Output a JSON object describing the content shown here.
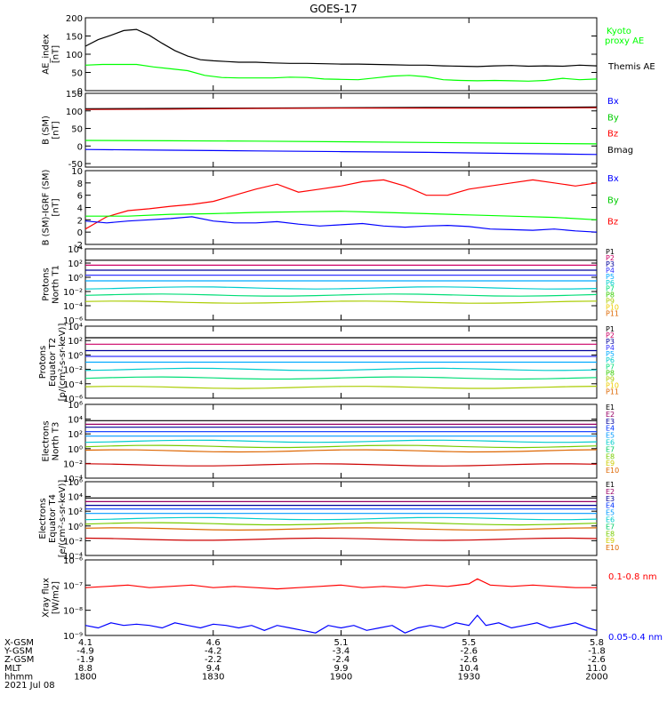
{
  "title": "GOES-17",
  "colors": {
    "black": "#000000",
    "blue": "#0000ff",
    "green": "#00ff00",
    "red": "#ff0000",
    "darkred": "#990000",
    "p_list": [
      "#000000",
      "#cc0066",
      "#000099",
      "#3333ff",
      "#00aaff",
      "#00cccc",
      "#00dd77",
      "#33cc00",
      "#aacc00",
      "#eecc00",
      "#dd6600",
      "#cc0000",
      "#990000"
    ],
    "e_list": [
      "#000000",
      "#990066",
      "#000099",
      "#0033ff",
      "#0099ff",
      "#00cccc",
      "#00cc66",
      "#77cc00",
      "#cccc00",
      "#dd6600",
      "#cc0000",
      "#880000"
    ]
  },
  "time_axis": {
    "start": 1800,
    "end": 2000,
    "ticks": [
      "1800",
      "1830",
      "1900",
      "1930",
      "2000"
    ],
    "tick_minutes": [
      0,
      30,
      60,
      90,
      120
    ]
  },
  "footer": {
    "row_labels": [
      "X-GSM",
      "Y-GSM",
      "Z-GSM",
      "MLT",
      "hhmm"
    ],
    "date": "2021 Jul 08",
    "columns": [
      [
        "4.1",
        "-4.9",
        "-1.9",
        "8.8",
        "1800"
      ],
      [
        "4.6",
        "-4.2",
        "-2.2",
        "9.4",
        "1830"
      ],
      [
        "5.1",
        "-3.4",
        "-2.4",
        "9.9",
        "1900"
      ],
      [
        "5.5",
        "-2.6",
        "-2.6",
        "10.4",
        "1930"
      ],
      [
        "5.8",
        "-1.8",
        "-2.6",
        "11.0",
        "2000"
      ]
    ]
  },
  "chart_data": [
    {
      "type": "line",
      "panel": "ae",
      "ylabel": [
        "AE_index",
        "[nT]"
      ],
      "ylim": [
        0,
        200
      ],
      "yticks": [
        "200",
        "150",
        "100",
        "50",
        "0"
      ],
      "legend": [
        {
          "label": "Kyoto",
          "color": "#00ff00"
        },
        {
          "label": "proxy AE",
          "color": "#00ff00"
        },
        {
          "label": "Themis AE",
          "color": "#000000"
        }
      ],
      "series": [
        {
          "name": "Themis AE",
          "color": "#000000",
          "t": [
            0,
            3,
            6,
            9,
            12,
            15,
            18,
            21,
            24,
            27,
            30,
            33,
            36,
            40,
            44,
            48,
            52,
            56,
            60,
            64,
            68,
            72,
            76,
            80,
            84,
            88,
            92,
            96,
            100,
            104,
            108,
            112,
            116,
            120
          ],
          "v": [
            122,
            140,
            152,
            165,
            168,
            152,
            130,
            110,
            95,
            85,
            82,
            80,
            78,
            78,
            76,
            75,
            75,
            74,
            73,
            73,
            72,
            71,
            70,
            70,
            68,
            67,
            66,
            68,
            69,
            67,
            68,
            67,
            70,
            68
          ]
        },
        {
          "name": "Kyoto proxy AE",
          "color": "#00ff00",
          "t": [
            0,
            4,
            8,
            12,
            16,
            20,
            24,
            28,
            32,
            36,
            40,
            44,
            48,
            52,
            56,
            60,
            64,
            68,
            72,
            76,
            80,
            84,
            88,
            92,
            96,
            100,
            104,
            108,
            112,
            116,
            120
          ],
          "v": [
            70,
            72,
            72,
            72,
            65,
            60,
            55,
            42,
            36,
            35,
            35,
            35,
            37,
            36,
            32,
            31,
            30,
            35,
            40,
            42,
            38,
            30,
            28,
            27,
            28,
            27,
            26,
            28,
            34,
            30,
            32
          ]
        }
      ]
    },
    {
      "type": "line",
      "panel": "bsm",
      "ylabel": [
        "B (SM)",
        "[nT]"
      ],
      "ylim": [
        -60,
        150
      ],
      "yticks": [
        "150",
        "100",
        "50",
        "0",
        "-50"
      ],
      "legend": [
        {
          "label": "Bx",
          "color": "#0000ff"
        },
        {
          "label": "By",
          "color": "#00cc00"
        },
        {
          "label": "Bz",
          "color": "#ff0000"
        },
        {
          "label": "Bmag",
          "color": "#000000"
        }
      ],
      "series": [
        {
          "name": "Bmag",
          "color": "#000000",
          "t": [
            0,
            20,
            40,
            60,
            80,
            100,
            120
          ],
          "v": [
            106,
            107,
            108,
            109,
            110,
            110,
            111
          ]
        },
        {
          "name": "Bz",
          "color": "#cc0000",
          "t": [
            0,
            20,
            40,
            60,
            80,
            100,
            120
          ],
          "v": [
            104,
            105,
            107,
            108,
            108,
            108,
            109
          ]
        },
        {
          "name": "By",
          "color": "#00ff00",
          "t": [
            0,
            20,
            40,
            60,
            80,
            100,
            120
          ],
          "v": [
            16,
            15,
            14,
            12,
            10,
            8,
            6
          ]
        },
        {
          "name": "Bx",
          "color": "#0000ff",
          "t": [
            0,
            20,
            40,
            60,
            80,
            100,
            120
          ],
          "v": [
            -10,
            -12,
            -14,
            -16,
            -18,
            -21,
            -24
          ]
        }
      ]
    },
    {
      "type": "line",
      "panel": "bigrf",
      "ylabel": [
        "B (SM)-IGRF (SM)",
        "[nT]"
      ],
      "ylim": [
        -2,
        10
      ],
      "yticks": [
        "10",
        "8",
        "6",
        "4",
        "2",
        "0",
        "-2"
      ],
      "legend": [
        {
          "label": "Bx",
          "color": "#0000ff"
        },
        {
          "label": "By",
          "color": "#00cc00"
        },
        {
          "label": "Bz",
          "color": "#ff0000"
        }
      ],
      "series": [
        {
          "name": "Bz",
          "color": "#ff0000",
          "t": [
            0,
            5,
            10,
            15,
            20,
            25,
            30,
            35,
            40,
            45,
            50,
            55,
            60,
            65,
            70,
            75,
            80,
            85,
            90,
            95,
            100,
            105,
            110,
            115,
            120
          ],
          "v": [
            0.5,
            2.5,
            3.5,
            3.8,
            4.2,
            4.5,
            5,
            6,
            7,
            7.8,
            6.5,
            7,
            7.5,
            8.2,
            8.5,
            7.5,
            6,
            6,
            7,
            7.5,
            8,
            8.5,
            8,
            7.5,
            8
          ]
        },
        {
          "name": "By",
          "color": "#00ff00",
          "t": [
            0,
            10,
            20,
            30,
            40,
            50,
            60,
            70,
            80,
            90,
            100,
            110,
            120
          ],
          "v": [
            2.6,
            2.6,
            2.9,
            3,
            3.2,
            3.3,
            3.4,
            3.2,
            3,
            2.8,
            2.6,
            2.4,
            2
          ]
        },
        {
          "name": "Bx",
          "color": "#0000ff",
          "t": [
            0,
            5,
            10,
            15,
            20,
            25,
            30,
            35,
            40,
            45,
            50,
            55,
            60,
            65,
            70,
            75,
            80,
            85,
            90,
            95,
            100,
            105,
            110,
            115,
            120
          ],
          "v": [
            1.8,
            1.5,
            1.8,
            2,
            2.2,
            2.5,
            1.8,
            1.5,
            1.5,
            1.7,
            1.3,
            1,
            1.2,
            1.4,
            1,
            0.8,
            1,
            1.1,
            0.9,
            0.5,
            0.4,
            0.3,
            0.5,
            0.2,
            0
          ]
        }
      ]
    },
    {
      "type": "line",
      "panel": "p_north",
      "ylabel": [
        "Protons",
        "North T1"
      ],
      "log": true,
      "ylim_exp": [
        -6,
        4
      ],
      "ytick_exps": [
        4,
        2,
        0,
        -2,
        -4,
        -6
      ],
      "legend": [
        "P1",
        "P2",
        "P3",
        "P4",
        "P5",
        "P6",
        "P7",
        "P8",
        "P9",
        "P10",
        "P11"
      ],
      "levels_exp": [
        2.4,
        1.7,
        1.0,
        0.3,
        -0.5,
        -1.5,
        -2.5,
        -3.5
      ],
      "level_colors": [
        "#000000",
        "#cc0066",
        "#000099",
        "#3333ff",
        "#00aaff",
        "#00cccc",
        "#00dd77",
        "#aacc00"
      ]
    },
    {
      "type": "line",
      "panel": "p_equator",
      "ylabel": [
        "Protons",
        "Equator T2",
        "[p/(cm²-s-sr-keV)]"
      ],
      "log": true,
      "ylim_exp": [
        -6,
        4
      ],
      "ytick_exps": [
        4,
        2,
        0,
        -2,
        -4,
        -6
      ],
      "legend": [
        "P1",
        "P2",
        "P3",
        "P4",
        "P5",
        "P6",
        "P7",
        "P8",
        "P9",
        "P10",
        "P11"
      ],
      "levels_exp": [
        2.4,
        1.5,
        0.6,
        -0.2,
        -1.0,
        -2.0,
        -3.2,
        -4.5
      ],
      "level_colors": [
        "#000000",
        "#cc0066",
        "#000099",
        "#3333ff",
        "#00aaff",
        "#00cccc",
        "#00dd77",
        "#aacc00"
      ]
    },
    {
      "type": "line",
      "panel": "e_north",
      "ylabel": [
        "Electrons",
        "North T3"
      ],
      "log": true,
      "ylim_exp": [
        -4,
        6
      ],
      "ytick_exps": [
        6,
        4,
        2,
        0,
        -2,
        -4
      ],
      "legend": [
        "E1",
        "E2",
        "E3",
        "E4",
        "E5",
        "E6",
        "E7",
        "E8",
        "E9",
        "E10"
      ],
      "levels_exp": [
        3.8,
        3.3,
        2.9,
        2.3,
        1.7,
        1.0,
        0.3,
        -0.3,
        -2.2
      ],
      "level_colors": [
        "#000000",
        "#990066",
        "#000099",
        "#0033ff",
        "#0099ff",
        "#00cccc",
        "#77cc00",
        "#dd6600",
        "#cc0000"
      ]
    },
    {
      "type": "line",
      "panel": "e_equator",
      "ylabel": [
        "Electrons",
        "Equator T4",
        "[e/(cm²-s-sr-keV)]"
      ],
      "log": true,
      "ylim_exp": [
        -4,
        6
      ],
      "ytick_exps": [
        6,
        4,
        2,
        0,
        -2,
        -4
      ],
      "legend": [
        "E1",
        "E2",
        "E3",
        "E4",
        "E5",
        "E6",
        "E7",
        "E8",
        "E9",
        "E10"
      ],
      "levels_exp": [
        3.8,
        3.3,
        2.8,
        2.3,
        1.7,
        1.0,
        0.3,
        -0.4,
        -1.8
      ],
      "level_colors": [
        "#000000",
        "#990066",
        "#000099",
        "#0033ff",
        "#0099ff",
        "#00cccc",
        "#77cc00",
        "#dd6600",
        "#cc0000"
      ]
    },
    {
      "type": "line",
      "panel": "xray",
      "ylabel": [
        "Xray flux",
        "[W/m2]"
      ],
      "log": true,
      "ylim_exp": [
        -9,
        -6
      ],
      "ytick_exps": [
        -6,
        -7,
        -8,
        -9
      ],
      "legend": [
        {
          "label": "0.1-0.8 nm",
          "color": "#ff0000"
        },
        {
          "label": "0.05-0.4 nm",
          "color": "#0000ff"
        }
      ],
      "series": [
        {
          "name": "0.1-0.8 nm",
          "color": "#ff0000",
          "t": [
            0,
            5,
            10,
            15,
            20,
            25,
            30,
            35,
            40,
            45,
            50,
            55,
            60,
            65,
            70,
            75,
            80,
            85,
            90,
            92,
            95,
            100,
            105,
            110,
            115,
            120
          ],
          "v_exp": [
            -7.1,
            -7.05,
            -7.0,
            -7.1,
            -7.05,
            -7.0,
            -7.1,
            -7.05,
            -7.1,
            -7.15,
            -7.1,
            -7.05,
            -7.0,
            -7.1,
            -7.05,
            -7.1,
            -7.0,
            -7.05,
            -6.95,
            -6.75,
            -7.0,
            -7.05,
            -7.0,
            -7.05,
            -7.1,
            -7.1
          ]
        },
        {
          "name": "0.05-0.4 nm",
          "color": "#0000ff",
          "t": [
            0,
            3,
            6,
            9,
            12,
            15,
            18,
            21,
            24,
            27,
            30,
            33,
            36,
            39,
            42,
            45,
            48,
            51,
            54,
            57,
            60,
            63,
            66,
            69,
            72,
            75,
            78,
            81,
            84,
            87,
            90,
            92,
            94,
            97,
            100,
            103,
            106,
            109,
            112,
            115,
            118,
            120
          ],
          "v_exp": [
            -8.6,
            -8.7,
            -8.5,
            -8.6,
            -8.55,
            -8.6,
            -8.7,
            -8.5,
            -8.6,
            -8.7,
            -8.55,
            -8.6,
            -8.7,
            -8.6,
            -8.8,
            -8.6,
            -8.7,
            -8.8,
            -8.9,
            -8.6,
            -8.7,
            -8.6,
            -8.8,
            -8.7,
            -8.6,
            -8.9,
            -8.7,
            -8.6,
            -8.7,
            -8.5,
            -8.6,
            -8.2,
            -8.6,
            -8.5,
            -8.7,
            -8.6,
            -8.5,
            -8.7,
            -8.6,
            -8.5,
            -8.7,
            -8.8
          ]
        }
      ]
    }
  ]
}
